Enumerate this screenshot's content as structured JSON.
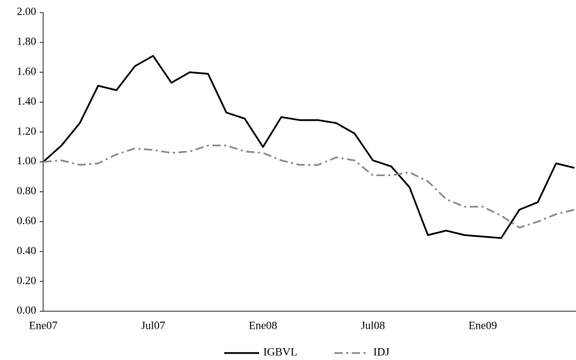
{
  "chart_data": {
    "type": "line",
    "categories": [
      "Ene07",
      null,
      null,
      null,
      null,
      null,
      "Jul07",
      null,
      null,
      null,
      null,
      null,
      "Ene08",
      null,
      null,
      null,
      null,
      null,
      "Jul08",
      null,
      null,
      null,
      null,
      null,
      "Ene09",
      null,
      null,
      null,
      null,
      null
    ],
    "series": [
      {
        "name": "IGBVL",
        "color": "#000000",
        "style": "solid",
        "values": [
          1.0,
          1.11,
          1.26,
          1.51,
          1.48,
          1.64,
          1.71,
          1.53,
          1.6,
          1.59,
          1.33,
          1.29,
          1.1,
          1.3,
          1.28,
          1.28,
          1.26,
          1.19,
          1.01,
          0.97,
          0.83,
          0.51,
          0.54,
          0.51,
          0.5,
          0.49,
          0.68,
          0.73,
          0.99,
          0.96
        ]
      },
      {
        "name": "IDJ",
        "color": "#8c8c8c",
        "style": "dashdot",
        "values": [
          1.0,
          1.01,
          0.98,
          0.99,
          1.05,
          1.09,
          1.08,
          1.06,
          1.07,
          1.11,
          1.11,
          1.07,
          1.06,
          1.01,
          0.98,
          0.98,
          1.03,
          1.01,
          0.91,
          0.91,
          0.93,
          0.87,
          0.75,
          0.7,
          0.7,
          0.64,
          0.56,
          0.6,
          0.65,
          0.68
        ]
      }
    ],
    "ylim": [
      0,
      2
    ],
    "yticks": [
      {
        "value": 0,
        "label": "0.00"
      },
      {
        "value": 0.2,
        "label": "0.20"
      },
      {
        "value": 0.4,
        "label": "0.40"
      },
      {
        "value": 0.6,
        "label": "0.60"
      },
      {
        "value": 0.8,
        "label": "0.80"
      },
      {
        "value": 1,
        "label": "1.00"
      },
      {
        "value": 1.2,
        "label": "1.20"
      },
      {
        "value": 1.4,
        "label": "1.40"
      },
      {
        "value": 1.6,
        "label": "1.60"
      },
      {
        "value": 1.8,
        "label": "1.80"
      },
      {
        "value": 2,
        "label": "2.00"
      }
    ],
    "legend": "bottom"
  }
}
